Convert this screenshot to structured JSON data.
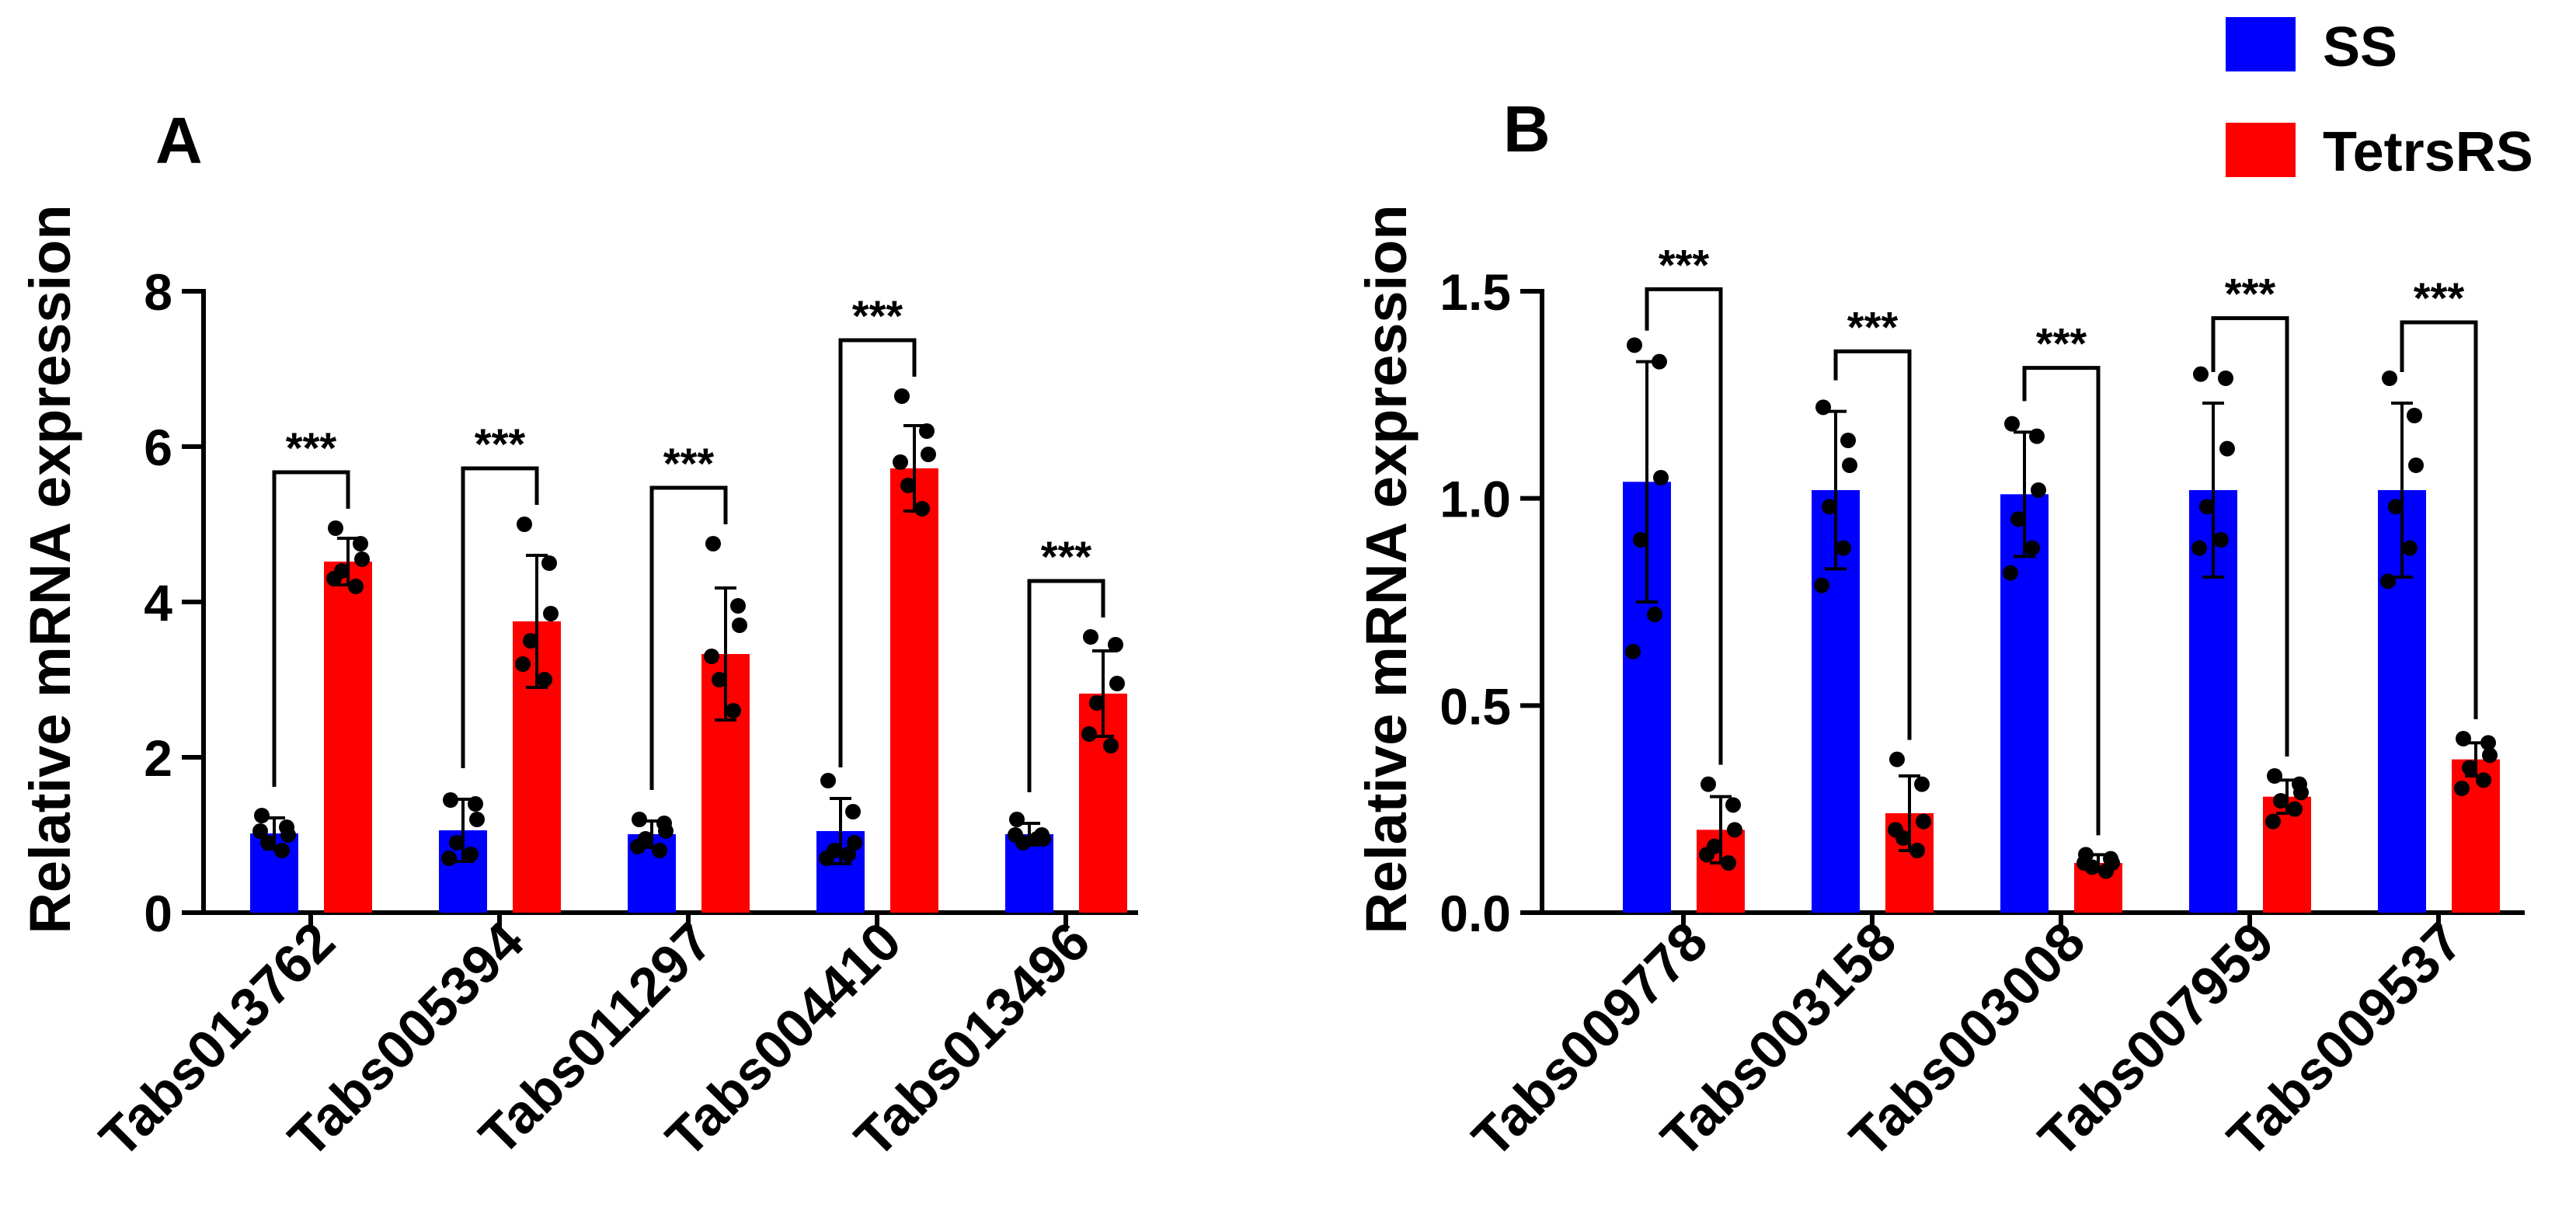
{
  "legend": [
    {
      "label": "SS",
      "color": "#0000FF"
    },
    {
      "label": "TetrsRS",
      "color": "#FF0000"
    }
  ],
  "significance_label": "***",
  "chart_data": [
    {
      "panel_label": "A",
      "type": "bar",
      "ylabel": "Relative mRNA expression",
      "xlabel": "",
      "ylim": [
        0,
        8
      ],
      "yticks": [
        0,
        2,
        4,
        6,
        8
      ],
      "ytick_labels": [
        "0",
        "2",
        "4",
        "6",
        "8"
      ],
      "categories": [
        "Tabs013762",
        "Tabs005394",
        "Tabs011297",
        "Tabs004410",
        "Tabs013496"
      ],
      "series": [
        {
          "name": "SS",
          "values": [
            1.02,
            1.06,
            1.01,
            1.05,
            1.01
          ],
          "errors": [
            0.2,
            0.4,
            0.17,
            0.42,
            0.14
          ],
          "points": [
            [
              1.25,
              1.1,
              1.0,
              0.9,
              0.8,
              1.05
            ],
            [
              1.45,
              1.4,
              1.2,
              0.9,
              0.75,
              0.7
            ],
            [
              1.2,
              1.15,
              1.05,
              0.95,
              0.8,
              0.85
            ],
            [
              1.7,
              1.3,
              0.9,
              0.8,
              0.75,
              0.7
            ],
            [
              1.2,
              1.0,
              0.95,
              0.9,
              0.95,
              1.0
            ]
          ]
        },
        {
          "name": "TetrsRS",
          "values": [
            4.52,
            3.75,
            3.33,
            5.72,
            2.82
          ],
          "errors": [
            0.3,
            0.85,
            0.85,
            0.55,
            0.55
          ],
          "points": [
            [
              4.95,
              4.75,
              4.55,
              4.4,
              4.2,
              4.3
            ],
            [
              5.0,
              4.5,
              3.85,
              3.5,
              3.0,
              3.2
            ],
            [
              4.75,
              3.95,
              3.7,
              3.0,
              2.6,
              3.3
            ],
            [
              6.65,
              6.2,
              5.9,
              5.5,
              5.2,
              5.8
            ],
            [
              3.55,
              3.45,
              2.95,
              2.7,
              2.15,
              2.3
            ]
          ]
        }
      ],
      "significance": [
        "***",
        "***",
        "***",
        "***",
        "***"
      ]
    },
    {
      "panel_label": "B",
      "type": "bar",
      "ylabel": "Relative mRNA expression",
      "xlabel": "",
      "ylim": [
        0,
        1.5
      ],
      "yticks": [
        0,
        0.5,
        1.0,
        1.5
      ],
      "ytick_labels": [
        "0.0",
        "0.5",
        "1.0",
        "1.5"
      ],
      "categories": [
        "Tabs009778",
        "Tabs003158",
        "Tabs003008",
        "Tabs007959",
        "Tabs009537"
      ],
      "series": [
        {
          "name": "SS",
          "values": [
            1.04,
            1.02,
            1.01,
            1.02,
            1.02
          ],
          "errors": [
            0.29,
            0.19,
            0.15,
            0.21,
            0.21
          ],
          "points": [
            [
              1.37,
              1.33,
              1.05,
              0.9,
              0.72,
              0.63
            ],
            [
              1.22,
              1.14,
              1.08,
              0.98,
              0.88,
              0.79
            ],
            [
              1.18,
              1.15,
              1.02,
              0.95,
              0.88,
              0.82
            ],
            [
              1.3,
              1.29,
              1.12,
              0.98,
              0.9,
              0.88
            ],
            [
              1.29,
              1.2,
              1.08,
              0.98,
              0.88,
              0.8
            ]
          ]
        },
        {
          "name": "TetrsRS",
          "values": [
            0.2,
            0.24,
            0.12,
            0.28,
            0.37
          ],
          "errors": [
            0.08,
            0.09,
            0.02,
            0.04,
            0.04
          ],
          "points": [
            [
              0.31,
              0.26,
              0.2,
              0.16,
              0.12,
              0.14
            ],
            [
              0.37,
              0.31,
              0.22,
              0.18,
              0.15,
              0.2
            ],
            [
              0.14,
              0.13,
              0.12,
              0.11,
              0.1,
              0.12
            ],
            [
              0.33,
              0.31,
              0.29,
              0.27,
              0.25,
              0.22
            ],
            [
              0.42,
              0.41,
              0.38,
              0.35,
              0.32,
              0.3
            ]
          ]
        }
      ],
      "significance": [
        "***",
        "***",
        "***",
        "***",
        "***"
      ]
    }
  ]
}
